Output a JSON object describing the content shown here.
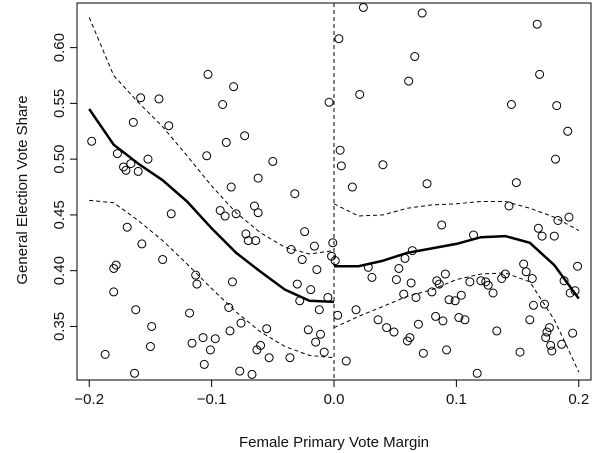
{
  "chart_data": {
    "type": "scatter",
    "title": "",
    "xlabel": "Female Primary Vote Margin",
    "ylabel": "General Election Vote Share",
    "xlim": [
      -0.21,
      0.21
    ],
    "ylim": [
      0.302,
      0.64
    ],
    "xticks": [
      -0.2,
      -0.1,
      0.0,
      0.1,
      0.2
    ],
    "xtick_labels": [
      "−0.2",
      "−0.1",
      "0.0",
      "0.1",
      "0.2"
    ],
    "yticks": [
      0.35,
      0.4,
      0.45,
      0.5,
      0.55,
      0.6
    ],
    "ytick_labels": [
      "0.35",
      "0.40",
      "0.45",
      "0.50",
      "0.55",
      "0.60"
    ],
    "grid": false,
    "cutoff_x": 0.0,
    "points": [
      [
        -0.198,
        0.516
      ],
      [
        -0.187,
        0.325
      ],
      [
        -0.18,
        0.402
      ],
      [
        -0.18,
        0.381
      ],
      [
        -0.178,
        0.405
      ],
      [
        -0.177,
        0.505
      ],
      [
        -0.172,
        0.493
      ],
      [
        -0.17,
        0.49
      ],
      [
        -0.169,
        0.439
      ],
      [
        -0.166,
        0.496
      ],
      [
        -0.164,
        0.533
      ],
      [
        -0.163,
        0.308
      ],
      [
        -0.162,
        0.365
      ],
      [
        -0.16,
        0.489
      ],
      [
        -0.158,
        0.555
      ],
      [
        -0.157,
        0.424
      ],
      [
        -0.152,
        0.5
      ],
      [
        -0.15,
        0.332
      ],
      [
        -0.149,
        0.35
      ],
      [
        -0.143,
        0.554
      ],
      [
        -0.14,
        0.41
      ],
      [
        -0.135,
        0.53
      ],
      [
        -0.133,
        0.451
      ],
      [
        -0.118,
        0.362
      ],
      [
        -0.116,
        0.335
      ],
      [
        -0.113,
        0.396
      ],
      [
        -0.112,
        0.388
      ],
      [
        -0.107,
        0.34
      ],
      [
        -0.106,
        0.316
      ],
      [
        -0.104,
        0.503
      ],
      [
        -0.103,
        0.576
      ],
      [
        -0.101,
        0.329
      ],
      [
        -0.097,
        0.339
      ],
      [
        -0.093,
        0.454
      ],
      [
        -0.091,
        0.549
      ],
      [
        -0.089,
        0.449
      ],
      [
        -0.088,
        0.515
      ],
      [
        -0.086,
        0.367
      ],
      [
        -0.085,
        0.346
      ],
      [
        -0.084,
        0.475
      ],
      [
        -0.083,
        0.39
      ],
      [
        -0.082,
        0.565
      ],
      [
        -0.08,
        0.451
      ],
      [
        -0.077,
        0.31
      ],
      [
        -0.076,
        0.353
      ],
      [
        -0.073,
        0.521
      ],
      [
        -0.072,
        0.433
      ],
      [
        -0.07,
        0.427
      ],
      [
        -0.067,
        0.307
      ],
      [
        -0.065,
        0.458
      ],
      [
        -0.064,
        0.427
      ],
      [
        -0.063,
        0.329
      ],
      [
        -0.062,
        0.483
      ],
      [
        -0.062,
        0.452
      ],
      [
        -0.06,
        0.333
      ],
      [
        -0.055,
        0.348
      ],
      [
        -0.053,
        0.322
      ],
      [
        -0.05,
        0.498
      ],
      [
        -0.036,
        0.322
      ],
      [
        -0.035,
        0.419
      ],
      [
        -0.032,
        0.469
      ],
      [
        -0.03,
        0.388
      ],
      [
        -0.028,
        0.373
      ],
      [
        -0.026,
        0.41
      ],
      [
        -0.024,
        0.435
      ],
      [
        -0.021,
        0.347
      ],
      [
        -0.019,
        0.383
      ],
      [
        -0.016,
        0.422
      ],
      [
        -0.015,
        0.336
      ],
      [
        -0.014,
        0.401
      ],
      [
        -0.012,
        0.365
      ],
      [
        -0.011,
        0.343
      ],
      [
        -0.008,
        0.327
      ],
      [
        -0.005,
        0.376
      ],
      [
        -0.004,
        0.551
      ],
      [
        -0.002,
        0.413
      ],
      [
        -0.001,
        0.425
      ],
      [
        0.001,
        0.409
      ],
      [
        0.003,
        0.36
      ],
      [
        0.004,
        0.608
      ],
      [
        0.005,
        0.508
      ],
      [
        0.006,
        0.494
      ],
      [
        0.01,
        0.319
      ],
      [
        0.015,
        0.475
      ],
      [
        0.018,
        0.365
      ],
      [
        0.021,
        0.558
      ],
      [
        0.024,
        0.636
      ],
      [
        0.028,
        0.403
      ],
      [
        0.031,
        0.394
      ],
      [
        0.036,
        0.356
      ],
      [
        0.04,
        0.495
      ],
      [
        0.043,
        0.349
      ],
      [
        0.049,
        0.345
      ],
      [
        0.051,
        0.392
      ],
      [
        0.053,
        0.402
      ],
      [
        0.057,
        0.379
      ],
      [
        0.058,
        0.411
      ],
      [
        0.06,
        0.337
      ],
      [
        0.061,
        0.57
      ],
      [
        0.062,
        0.34
      ],
      [
        0.063,
        0.389
      ],
      [
        0.064,
        0.418
      ],
      [
        0.066,
        0.592
      ],
      [
        0.067,
        0.376
      ],
      [
        0.069,
        0.352
      ],
      [
        0.072,
        0.631
      ],
      [
        0.073,
        0.326
      ],
      [
        0.076,
        0.478
      ],
      [
        0.08,
        0.381
      ],
      [
        0.083,
        0.359
      ],
      [
        0.084,
        0.391
      ],
      [
        0.086,
        0.388
      ],
      [
        0.088,
        0.441
      ],
      [
        0.089,
        0.355
      ],
      [
        0.091,
        0.397
      ],
      [
        0.092,
        0.329
      ],
      [
        0.094,
        0.374
      ],
      [
        0.099,
        0.373
      ],
      [
        0.102,
        0.358
      ],
      [
        0.104,
        0.378
      ],
      [
        0.107,
        0.356
      ],
      [
        0.111,
        0.39
      ],
      [
        0.114,
        0.432
      ],
      [
        0.117,
        0.308
      ],
      [
        0.12,
        0.391
      ],
      [
        0.124,
        0.39
      ],
      [
        0.126,
        0.387
      ],
      [
        0.13,
        0.38
      ],
      [
        0.133,
        0.346
      ],
      [
        0.137,
        0.393
      ],
      [
        0.14,
        0.397
      ],
      [
        0.143,
        0.458
      ],
      [
        0.145,
        0.549
      ],
      [
        0.149,
        0.479
      ],
      [
        0.152,
        0.327
      ],
      [
        0.155,
        0.406
      ],
      [
        0.157,
        0.399
      ],
      [
        0.16,
        0.356
      ],
      [
        0.162,
        0.393
      ],
      [
        0.163,
        0.369
      ],
      [
        0.166,
        0.621
      ],
      [
        0.167,
        0.438
      ],
      [
        0.168,
        0.576
      ],
      [
        0.17,
        0.431
      ],
      [
        0.172,
        0.37
      ],
      [
        0.173,
        0.34
      ],
      [
        0.174,
        0.345
      ],
      [
        0.176,
        0.349
      ],
      [
        0.177,
        0.333
      ],
      [
        0.178,
        0.328
      ],
      [
        0.18,
        0.431
      ],
      [
        0.181,
        0.5
      ],
      [
        0.182,
        0.548
      ],
      [
        0.183,
        0.445
      ],
      [
        0.186,
        0.334
      ],
      [
        0.188,
        0.391
      ],
      [
        0.191,
        0.525
      ],
      [
        0.192,
        0.448
      ],
      [
        0.193,
        0.38
      ],
      [
        0.195,
        0.344
      ],
      [
        0.197,
        0.382
      ],
      [
        0.199,
        0.404
      ]
    ],
    "fit_left": {
      "x": [
        -0.2,
        -0.18,
        -0.16,
        -0.14,
        -0.12,
        -0.1,
        -0.08,
        -0.06,
        -0.04,
        -0.02,
        0.0
      ],
      "y": [
        0.545,
        0.513,
        0.496,
        0.481,
        0.462,
        0.438,
        0.416,
        0.399,
        0.383,
        0.373,
        0.372
      ]
    },
    "fit_right": {
      "x": [
        0.0,
        0.02,
        0.04,
        0.06,
        0.08,
        0.1,
        0.12,
        0.14,
        0.16,
        0.18,
        0.19,
        0.2
      ],
      "y": [
        0.404,
        0.404,
        0.409,
        0.416,
        0.42,
        0.424,
        0.43,
        0.431,
        0.425,
        0.405,
        0.39,
        0.375
      ]
    },
    "ci_left_upper": {
      "x": [
        -0.2,
        -0.18,
        -0.16,
        -0.14,
        -0.12,
        -0.1,
        -0.08,
        -0.06,
        -0.04,
        -0.02,
        0.0
      ],
      "y": [
        0.627,
        0.575,
        0.551,
        0.529,
        0.503,
        0.476,
        0.452,
        0.434,
        0.421,
        0.415,
        0.418
      ]
    },
    "ci_left_lower": {
      "x": [
        -0.2,
        -0.18,
        -0.16,
        -0.14,
        -0.12,
        -0.1,
        -0.08,
        -0.06,
        -0.04,
        -0.02,
        0.0
      ],
      "y": [
        0.463,
        0.461,
        0.445,
        0.427,
        0.406,
        0.384,
        0.363,
        0.345,
        0.332,
        0.324,
        0.322
      ]
    },
    "ci_right_upper": {
      "x": [
        0.0,
        0.02,
        0.04,
        0.06,
        0.08,
        0.1,
        0.12,
        0.14,
        0.16,
        0.18,
        0.19,
        0.2
      ],
      "y": [
        0.46,
        0.449,
        0.45,
        0.456,
        0.459,
        0.46,
        0.462,
        0.462,
        0.456,
        0.448,
        0.442,
        0.436
      ]
    },
    "ci_right_lower": {
      "x": [
        0.0,
        0.02,
        0.04,
        0.06,
        0.08,
        0.1,
        0.12,
        0.14,
        0.16,
        0.18,
        0.19,
        0.2
      ],
      "y": [
        0.349,
        0.359,
        0.368,
        0.377,
        0.383,
        0.392,
        0.397,
        0.398,
        0.39,
        0.356,
        0.333,
        0.309
      ]
    }
  }
}
